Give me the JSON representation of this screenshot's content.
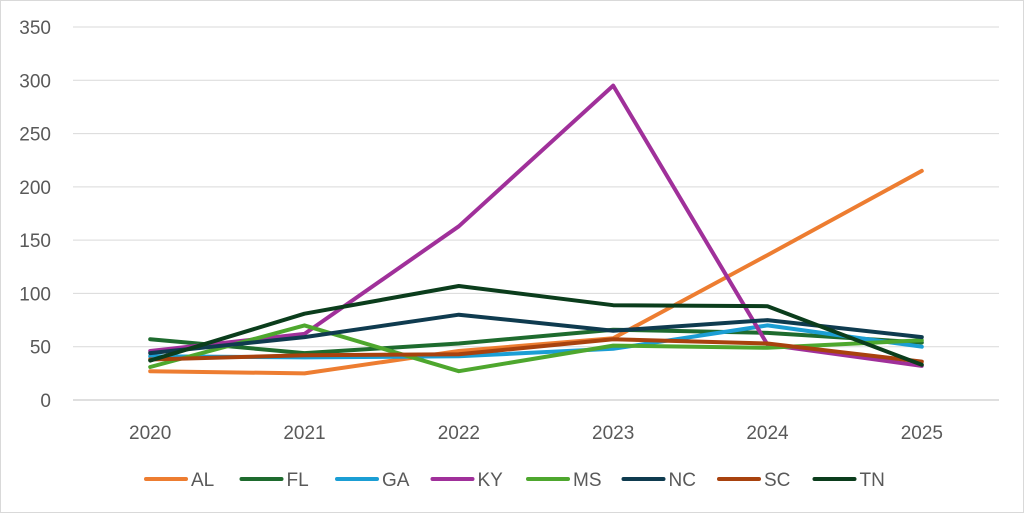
{
  "chart_data": {
    "type": "line",
    "title": "",
    "xlabel": "",
    "ylabel": "",
    "categories": [
      "2020",
      "2021",
      "2022",
      "2023",
      "2024",
      "2025"
    ],
    "ylim": [
      0,
      350
    ],
    "yticks": [
      0,
      50,
      100,
      150,
      200,
      250,
      300,
      350
    ],
    "grid": true,
    "legend_position": "bottom",
    "series": [
      {
        "name": "AL",
        "color": "#ED7D31",
        "values": [
          27,
          25,
          46,
          58,
          136,
          215
        ]
      },
      {
        "name": "FL",
        "color": "#1E6B2E",
        "values": [
          57,
          44,
          53,
          66,
          63,
          54
        ]
      },
      {
        "name": "GA",
        "color": "#1B9ED4",
        "values": [
          41,
          40,
          41,
          48,
          70,
          50
        ]
      },
      {
        "name": "KY",
        "color": "#A0309A",
        "values": [
          46,
          62,
          163,
          295,
          52,
          32
        ]
      },
      {
        "name": "MS",
        "color": "#4EA72E",
        "values": [
          31,
          70,
          27,
          51,
          49,
          56
        ]
      },
      {
        "name": "NC",
        "color": "#0F3B4F",
        "values": [
          44,
          59,
          80,
          65,
          75,
          59
        ]
      },
      {
        "name": "SC",
        "color": "#A8420E",
        "values": [
          38,
          42,
          43,
          57,
          53,
          36
        ]
      },
      {
        "name": "TN",
        "color": "#0B3D1C",
        "values": [
          37,
          81,
          107,
          89,
          88,
          33
        ]
      }
    ]
  }
}
